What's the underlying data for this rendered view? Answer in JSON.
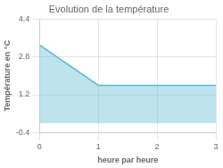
{
  "chart_data": {
    "type": "area",
    "title": "Evolution de la température",
    "xlabel": "heure par heure",
    "ylabel": "Température en °C",
    "x": [
      0,
      1,
      3
    ],
    "values": [
      3.3,
      1.6,
      1.6
    ],
    "color": "#5bb8d4",
    "xlim": [
      0,
      3
    ],
    "ylim": [
      -0.4,
      4.4
    ],
    "xticks": [
      0,
      1,
      2,
      3
    ],
    "yticks": [
      -0.4,
      1.2,
      2.8,
      4.4
    ],
    "grid": true
  }
}
